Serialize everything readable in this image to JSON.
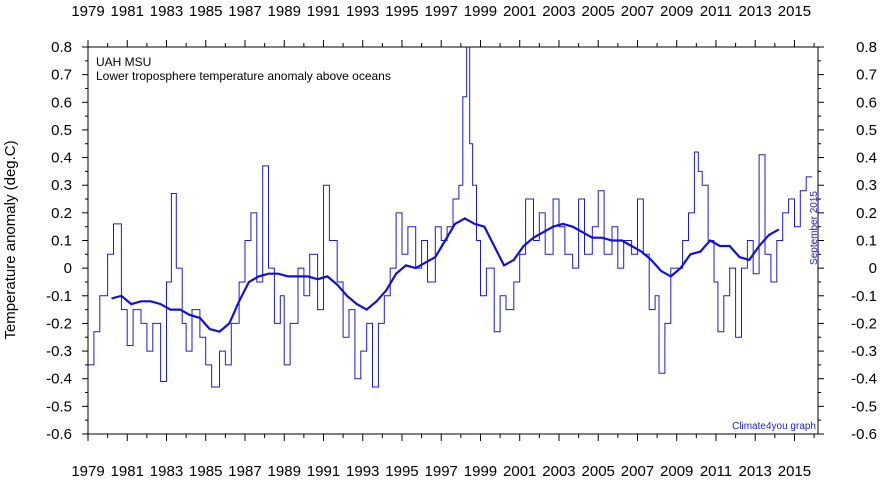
{
  "chart_data": {
    "type": "line",
    "title": "UAH MSU",
    "subtitle": "Lower troposphere temperature anomaly above oceans",
    "ylabel": "Temperature anomaly (deg.C)",
    "xlabel": "",
    "xlim": [
      1979,
      2016.2
    ],
    "ylim": [
      -0.6,
      0.8
    ],
    "x_tick_labels": [
      "1979",
      "1981",
      "1983",
      "1985",
      "1987",
      "1989",
      "1991",
      "1993",
      "1995",
      "1997",
      "1999",
      "2001",
      "2003",
      "2005",
      "2007",
      "2009",
      "2011",
      "2013",
      "2015"
    ],
    "y_tick_labels": [
      "0.8",
      "0.7",
      "0.6",
      "0.5",
      "0.4",
      "0.3",
      "0.2",
      "0.1",
      "0",
      "-0.1",
      "-0.2",
      "-0.3",
      "-0.4",
      "-0.5",
      "-0.6"
    ],
    "annotations": {
      "latest_month": "September 2015",
      "credit": "Climate4you graph"
    },
    "colors": {
      "monthly": "#1c1ccf",
      "running_mean": "#1010d8",
      "axes": "#000000"
    },
    "grid": false,
    "series": [
      {
        "style": "step",
        "x": [
          1979.0,
          1979.3,
          1979.6,
          1980.0,
          1980.3,
          1980.7,
          1981.0,
          1981.3,
          1981.7,
          1982.0,
          1982.3,
          1982.7,
          1983.0,
          1983.25,
          1983.5,
          1983.8,
          1984.0,
          1984.3,
          1984.7,
          1985.0,
          1985.3,
          1985.7,
          1986.0,
          1986.3,
          1986.7,
          1987.0,
          1987.3,
          1987.6,
          1987.9,
          1988.2,
          1988.5,
          1988.8,
          1989.0,
          1989.3,
          1989.7,
          1990.0,
          1990.3,
          1990.7,
          1991.0,
          1991.3,
          1991.7,
          1992.0,
          1992.3,
          1992.6,
          1992.9,
          1993.2,
          1993.5,
          1993.8,
          1994.1,
          1994.4,
          1994.7,
          1995.0,
          1995.3,
          1995.7,
          1996.0,
          1996.3,
          1996.7,
          1997.0,
          1997.3,
          1997.6,
          1997.9,
          1998.1,
          1998.3,
          1998.45,
          1998.6,
          1998.8,
          1999.0,
          1999.3,
          1999.7,
          2000.0,
          2000.3,
          2000.7,
          2001.0,
          2001.3,
          2001.7,
          2002.0,
          2002.3,
          2002.7,
          2003.0,
          2003.3,
          2003.7,
          2004.0,
          2004.3,
          2004.7,
          2005.0,
          2005.3,
          2005.7,
          2006.0,
          2006.3,
          2006.7,
          2007.0,
          2007.3,
          2007.6,
          2007.9,
          2008.1,
          2008.4,
          2008.7,
          2009.0,
          2009.3,
          2009.6,
          2009.9,
          2010.1,
          2010.3,
          2010.6,
          2010.9,
          2011.1,
          2011.4,
          2011.7,
          2012.0,
          2012.3,
          2012.6,
          2012.9,
          2013.2,
          2013.5,
          2013.8,
          2014.1,
          2014.4,
          2014.7,
          2015.0,
          2015.3,
          2015.6
        ],
        "y": [
          -0.35,
          -0.23,
          -0.1,
          0.05,
          0.16,
          -0.15,
          -0.28,
          -0.15,
          -0.2,
          -0.3,
          -0.2,
          -0.41,
          -0.05,
          0.27,
          0.0,
          -0.2,
          -0.3,
          -0.15,
          -0.25,
          -0.35,
          -0.43,
          -0.3,
          -0.35,
          -0.2,
          -0.05,
          0.1,
          0.2,
          -0.05,
          0.37,
          0.0,
          -0.2,
          -0.1,
          -0.35,
          -0.2,
          0.0,
          -0.1,
          0.05,
          -0.15,
          0.3,
          0.1,
          -0.05,
          -0.25,
          -0.15,
          -0.4,
          -0.3,
          -0.2,
          -0.43,
          -0.2,
          -0.1,
          0.0,
          0.2,
          0.05,
          0.15,
          0.0,
          0.1,
          -0.05,
          0.15,
          0.1,
          0.15,
          0.25,
          0.3,
          0.62,
          0.8,
          0.45,
          0.3,
          0.1,
          -0.1,
          0.0,
          -0.23,
          -0.1,
          -0.15,
          -0.05,
          0.05,
          0.25,
          0.1,
          0.2,
          0.05,
          0.25,
          0.15,
          0.05,
          0.0,
          0.25,
          0.05,
          0.15,
          0.28,
          0.05,
          0.15,
          0.0,
          0.1,
          0.05,
          0.25,
          0.05,
          -0.15,
          -0.1,
          -0.38,
          -0.2,
          0.0,
          0.0,
          0.1,
          0.2,
          0.42,
          0.35,
          0.3,
          0.1,
          -0.05,
          -0.23,
          -0.1,
          0.0,
          -0.25,
          0.0,
          0.1,
          -0.02,
          0.41,
          0.05,
          -0.05,
          0.1,
          0.2,
          0.25,
          0.15,
          0.28,
          0.33
        ]
      },
      {
        "style": "line",
        "x": [
          1980.2,
          1980.7,
          1981.2,
          1981.7,
          1982.2,
          1982.7,
          1983.2,
          1983.7,
          1984.2,
          1984.7,
          1985.2,
          1985.7,
          1986.2,
          1986.7,
          1987.2,
          1987.7,
          1988.2,
          1988.7,
          1989.2,
          1989.7,
          1990.2,
          1990.7,
          1991.2,
          1991.7,
          1992.2,
          1992.7,
          1993.2,
          1993.7,
          1994.2,
          1994.7,
          1995.2,
          1995.7,
          1996.2,
          1996.7,
          1997.2,
          1997.7,
          1998.2,
          1998.7,
          1999.2,
          1999.7,
          2000.2,
          2000.7,
          2001.2,
          2001.7,
          2002.2,
          2002.7,
          2003.2,
          2003.7,
          2004.2,
          2004.7,
          2005.2,
          2005.7,
          2006.2,
          2006.7,
          2007.2,
          2007.7,
          2008.2,
          2008.7,
          2009.2,
          2009.7,
          2010.2,
          2010.7,
          2011.2,
          2011.7,
          2012.2,
          2012.7,
          2013.2,
          2013.7,
          2014.2
        ],
        "y": [
          -0.11,
          -0.1,
          -0.13,
          -0.12,
          -0.12,
          -0.13,
          -0.15,
          -0.15,
          -0.17,
          -0.18,
          -0.22,
          -0.23,
          -0.2,
          -0.12,
          -0.05,
          -0.03,
          -0.02,
          -0.02,
          -0.03,
          -0.03,
          -0.03,
          -0.04,
          -0.03,
          -0.06,
          -0.1,
          -0.13,
          -0.15,
          -0.12,
          -0.08,
          -0.02,
          0.01,
          0.0,
          0.02,
          0.04,
          0.1,
          0.16,
          0.18,
          0.16,
          0.15,
          0.08,
          0.01,
          0.03,
          0.08,
          0.11,
          0.13,
          0.15,
          0.16,
          0.15,
          0.13,
          0.11,
          0.11,
          0.1,
          0.1,
          0.08,
          0.06,
          0.03,
          -0.01,
          -0.03,
          0.0,
          0.05,
          0.06,
          0.1,
          0.08,
          0.08,
          0.04,
          0.03,
          0.08,
          0.12,
          0.14
        ]
      }
    ]
  }
}
